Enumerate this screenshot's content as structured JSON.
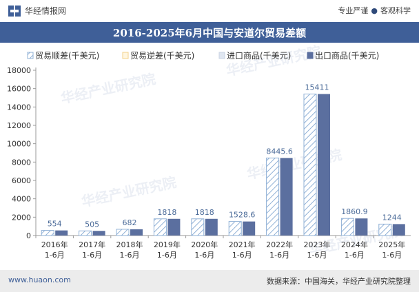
{
  "header": {
    "site_name": "华经情报网",
    "slogan_1": "专业严谨",
    "slogan_2": "客观科学"
  },
  "footer": {
    "website": "www.huaon.com",
    "source": "数据来源：中国海关，华经产业研究院整理"
  },
  "watermark_text": "华经产业研究院",
  "colors": {
    "title_bar": "#3f5f98",
    "export_bar": "#5b6f9f",
    "import_bar": "#dfe6f1",
    "surplus_hatch": "#8fb0d6",
    "label": "#4a6a98"
  },
  "chart_data": {
    "type": "bar",
    "title": "2016-2025年6月中国与安道尔贸易差额",
    "categories": [
      "2016年\n1-6月",
      "2017年\n1-6月",
      "2018年\n1-6月",
      "2019年\n1-6月",
      "2020年\n1-6月",
      "2021年\n1-6月",
      "2022年\n1-6月",
      "2023年\n1-6月",
      "2024年\n1-6月",
      "2025年\n1-6月"
    ],
    "legend": [
      "贸易顺差(千美元)",
      "贸易逆差(千美元)",
      "进口商品(千美元)",
      "出口商品(千美元)"
    ],
    "legend_position": "top",
    "series": [
      {
        "name": "贸易顺差(千美元)",
        "values": [
          554,
          505,
          682,
          1818,
          1818,
          1528.6,
          8445.6,
          15411,
          1860.9,
          1244
        ]
      },
      {
        "name": "贸易逆差(千美元)",
        "values": [
          0,
          0,
          0,
          0,
          0,
          0,
          0,
          0,
          0,
          0
        ]
      },
      {
        "name": "进口商品(千美元)",
        "values": [
          0,
          0,
          0,
          0,
          0,
          0,
          0,
          0,
          0,
          0
        ]
      },
      {
        "name": "出口商品(千美元)",
        "values": [
          554,
          505,
          682,
          1818,
          1818,
          1528.6,
          8445.6,
          15411,
          1860.9,
          1244
        ]
      }
    ],
    "data_labels": [
      "554",
      "505",
      "682",
      "1818",
      "1818",
      "1528.6",
      "8445.6",
      "15411",
      "1860.9",
      "1244"
    ],
    "ylim": [
      0,
      18000
    ],
    "yticks": [
      0,
      2000,
      4000,
      6000,
      8000,
      10000,
      12000,
      14000,
      16000,
      18000
    ],
    "grid": false
  }
}
